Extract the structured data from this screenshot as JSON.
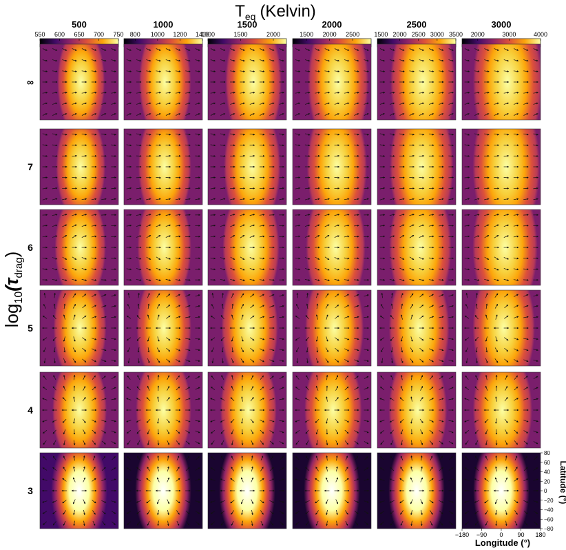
{
  "chart_data": {
    "type": "heatmap",
    "title": "T",
    "title_subscript": "eq",
    "title_unit": "(Kelvin)",
    "ylabel_main": "log",
    "ylabel_sub": "10",
    "ylabel_symbol": "(τ",
    "ylabel_symbol_sub": "drag",
    "ylabel_close": ")",
    "xlabel": "Longitude (°)",
    "ylabel_right": "Latitude (°)",
    "columns": [
      {
        "teq_label": "500",
        "colorbar_ticks": [
          "550",
          "600",
          "650",
          "700",
          "750"
        ],
        "colorbar_range": [
          550,
          750
        ]
      },
      {
        "teq_label": "1000",
        "colorbar_ticks": [
          "800",
          "1000",
          "1200",
          "1400"
        ],
        "colorbar_range": [
          700,
          1400
        ]
      },
      {
        "teq_label": "1500",
        "colorbar_ticks": [
          "1000",
          "1500",
          "2000"
        ],
        "colorbar_range": [
          1000,
          2200
        ]
      },
      {
        "teq_label": "2000",
        "colorbar_ticks": [
          "1500",
          "2000",
          "2500"
        ],
        "colorbar_range": [
          1200,
          2900
        ]
      },
      {
        "teq_label": "2500",
        "colorbar_ticks": [
          "1500",
          "2000",
          "2500",
          "3000",
          "3500"
        ],
        "colorbar_range": [
          1400,
          3500
        ]
      },
      {
        "teq_label": "3000",
        "colorbar_ticks": [
          "2000",
          "3000",
          "4000"
        ],
        "colorbar_range": [
          1500,
          4000
        ]
      }
    ],
    "rows": [
      {
        "log_tau_drag": "∞"
      },
      {
        "log_tau_drag": "7"
      },
      {
        "log_tau_drag": "6"
      },
      {
        "log_tau_drag": "5"
      },
      {
        "log_tau_drag": "4"
      },
      {
        "log_tau_drag": "3"
      }
    ],
    "x_axis": {
      "range": [
        -180,
        180
      ],
      "ticks": [
        "−180",
        "−90",
        "0",
        "90",
        "180"
      ]
    },
    "y_axis": {
      "range": [
        -80,
        80
      ],
      "ticks": [
        "80",
        "60",
        "40",
        "20",
        "0",
        "−20",
        "−40",
        "−60",
        "−80"
      ]
    },
    "colormap": [
      "#000004",
      "#420a68",
      "#932667",
      "#dd513a",
      "#fca50a",
      "#fcffa4"
    ]
  }
}
